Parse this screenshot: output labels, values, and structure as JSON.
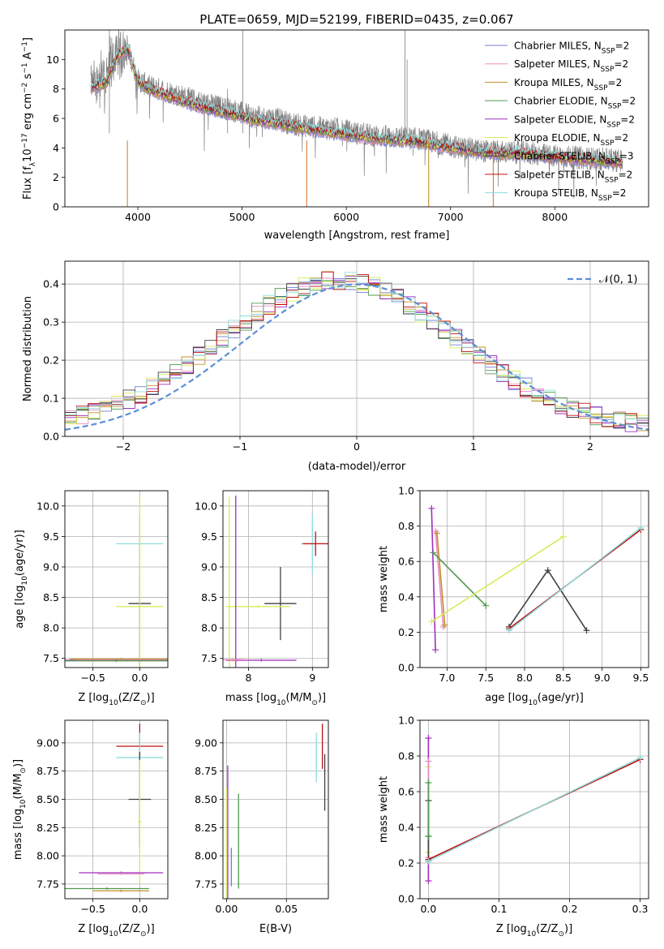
{
  "figure": {
    "title": "PLATE=0659, MJD=52199, FIBERID=0435, z=0.067"
  },
  "models": [
    {
      "name": "Chabrier MILES, N",
      "sub": "SSP",
      "suffix": "=2",
      "color": "#6f7fd0"
    },
    {
      "name": "Salpeter MILES, N",
      "sub": "SSP",
      "suffix": "=2",
      "color": "#e98fc4"
    },
    {
      "name": "Kroupa MILES, N",
      "sub": "SSP",
      "suffix": "=2",
      "color": "#c0902a"
    },
    {
      "name": "Chabrier ELODIE, N",
      "sub": "SSP",
      "suffix": "=2",
      "color": "#4f9a4f"
    },
    {
      "name": "Salpeter ELODIE, N",
      "sub": "SSP",
      "suffix": "=2",
      "color": "#a02ec0"
    },
    {
      "name": "Kroupa ELODIE, N",
      "sub": "SSP",
      "suffix": "=2",
      "color": "#d6ec5a"
    },
    {
      "name": "Chabrier STELIB, N",
      "sub": "SSP",
      "suffix": "=3",
      "color": "#404040"
    },
    {
      "name": "Salpeter STELIB, N",
      "sub": "SSP",
      "suffix": "=2",
      "color": "#c01010"
    },
    {
      "name": "Kroupa STELIB, N",
      "sub": "SSP",
      "suffix": "=2",
      "color": "#8fdcdc"
    }
  ],
  "chart_data": [
    {
      "id": "spectrum",
      "type": "line",
      "xlabel": "wavelength [Angstrom, rest frame]",
      "ylabel": "Flux [f",
      "ylabel_rich": [
        "Flux [f",
        "λ",
        "10",
        "−17",
        " erg cm",
        "−2",
        " s",
        "−1",
        " A",
        "−1",
        "]"
      ],
      "xlim": [
        3300,
        8900
      ],
      "ylim": [
        0,
        12
      ],
      "xticks": [
        4000,
        5000,
        6000,
        7000,
        8000
      ],
      "yticks": [
        0,
        2,
        4,
        6,
        8,
        10
      ],
      "data_color": "#808080",
      "data_points": [
        [
          3550,
          8.3
        ],
        [
          3700,
          8.8
        ],
        [
          3800,
          10.4
        ],
        [
          3900,
          10.8
        ],
        [
          4000,
          8.6
        ],
        [
          4100,
          8.2
        ],
        [
          4300,
          7.8
        ],
        [
          4500,
          7.3
        ],
        [
          4700,
          6.9
        ],
        [
          4900,
          6.6
        ],
        [
          5100,
          6.1
        ],
        [
          5300,
          6.0
        ],
        [
          5500,
          5.6
        ],
        [
          5700,
          5.4
        ],
        [
          5900,
          5.3
        ],
        [
          6100,
          5.0
        ],
        [
          6300,
          4.8
        ],
        [
          6500,
          4.7
        ],
        [
          6700,
          4.6
        ],
        [
          6900,
          4.3
        ],
        [
          7100,
          4.0
        ],
        [
          7300,
          3.8
        ],
        [
          7500,
          3.7
        ],
        [
          7700,
          3.7
        ],
        [
          7900,
          3.5
        ],
        [
          8100,
          3.4
        ],
        [
          8300,
          3.3
        ],
        [
          8500,
          3.2
        ],
        [
          8650,
          3.1
        ]
      ],
      "model_points": [
        [
          3550,
          8.1
        ],
        [
          3700,
          8.4
        ],
        [
          3800,
          10.2
        ],
        [
          3900,
          10.7
        ],
        [
          4000,
          8.5
        ],
        [
          4100,
          8.0
        ],
        [
          4300,
          7.5
        ],
        [
          4500,
          7.0
        ],
        [
          4700,
          6.6
        ],
        [
          4900,
          6.3
        ],
        [
          5100,
          5.9
        ],
        [
          5300,
          5.7
        ],
        [
          5500,
          5.4
        ],
        [
          5700,
          5.2
        ],
        [
          5900,
          5.0
        ],
        [
          6100,
          4.8
        ],
        [
          6300,
          4.6
        ],
        [
          6500,
          4.5
        ],
        [
          6700,
          4.4
        ],
        [
          6900,
          4.1
        ],
        [
          7100,
          3.9
        ],
        [
          7300,
          3.7
        ],
        [
          7500,
          3.6
        ],
        [
          7700,
          3.6
        ],
        [
          7900,
          3.4
        ],
        [
          8100,
          3.3
        ],
        [
          8300,
          3.2
        ],
        [
          8500,
          3.1
        ],
        [
          8650,
          3.0
        ]
      ]
    },
    {
      "id": "residuals",
      "type": "area",
      "xlabel": "(data-model)/error",
      "ylabel": "Normed distribution",
      "xlim": [
        -2.5,
        2.5
      ],
      "ylim": [
        0,
        0.46
      ],
      "xticks": [
        -2,
        -1,
        0,
        1,
        2
      ],
      "yticks": [
        0.0,
        0.1,
        0.2,
        0.3,
        0.4
      ],
      "legend": "𝒩(0, 1)",
      "normal_color": "#5b8fd6"
    },
    {
      "id": "age_vs_Z",
      "type": "scatter",
      "xlabel": "Z [log",
      "xlabel_tail": "(Z/Z",
      "ylabel": "age  [log",
      "ylabel_tail": "(age/yr)]",
      "xlim": [
        -0.8,
        0.3
      ],
      "ylim": [
        7.35,
        10.25
      ],
      "xticks": [
        -0.5,
        0.0
      ],
      "yticks": [
        7.5,
        8.0,
        8.5,
        9.0,
        9.5,
        10.0
      ],
      "points": [
        {
          "model": 6,
          "x": 0.0,
          "y": 8.4,
          "xerr": 0.12,
          "yerr": 1.4
        },
        {
          "model": 8,
          "x": 0.0,
          "y": 9.38,
          "xerr": 0.25,
          "yerr": 0.5
        },
        {
          "model": 5,
          "x": 0.0,
          "y": 8.35,
          "xerr": 0.25,
          "yerr": 1.8
        },
        {
          "model": 4,
          "x": -0.2,
          "y": 7.47,
          "xerr": 0.6,
          "yerr": 0.02
        },
        {
          "model": 1,
          "x": -0.2,
          "y": 7.48,
          "xerr": 0.5,
          "yerr": 0.02
        },
        {
          "model": 2,
          "x": -0.2,
          "y": 7.49,
          "xerr": 0.55,
          "yerr": 0.02
        },
        {
          "model": 3,
          "x": -0.25,
          "y": 7.46,
          "xerr": 0.55,
          "yerr": 0.02
        }
      ]
    },
    {
      "id": "age_vs_mass",
      "type": "scatter",
      "xlabel": "mass [log",
      "xlabel_tail": "(M/M",
      "xlim": [
        7.6,
        9.25
      ],
      "ylim": [
        7.35,
        10.25
      ],
      "xticks": [
        8,
        9
      ],
      "yticks": [
        7.5,
        8.0,
        8.5,
        9.0,
        9.5,
        10.0
      ],
      "points": [
        {
          "model": 6,
          "x": 8.5,
          "y": 8.4,
          "xerr": 0.25,
          "yerr": 0.6
        },
        {
          "model": 8,
          "x": 9.0,
          "y": 9.38,
          "xerr": 0.18,
          "yerr": 0.5
        },
        {
          "model": 7,
          "x": 9.05,
          "y": 9.38,
          "xerr": 0.2,
          "yerr": 0.2
        },
        {
          "model": 5,
          "x": 7.7,
          "y": 8.35,
          "xerr": 0.0,
          "yerr": 1.8
        },
        {
          "model": 5,
          "x": 8.15,
          "y": 8.35,
          "xerr": 0.5,
          "yerr": 0.02
        },
        {
          "model": 4,
          "x": 7.8,
          "y": 7.47,
          "xerr": 0.05,
          "yerr": 2.7
        },
        {
          "model": 4,
          "x": 8.2,
          "y": 7.47,
          "xerr": 0.55,
          "yerr": 0.02
        },
        {
          "model": 2,
          "x": 7.75,
          "y": 7.47,
          "xerr": 0.05,
          "yerr": 0.02
        },
        {
          "model": 1,
          "x": 7.75,
          "y": 7.48,
          "xerr": 0.2,
          "yerr": 0.02
        }
      ]
    },
    {
      "id": "mass_weight_vs_age",
      "type": "line",
      "xlabel": "age  [log",
      "xlabel_tail": "(age/yr)]",
      "ylabel": "mass weight",
      "xlim": [
        6.65,
        9.6
      ],
      "ylim": [
        0.0,
        1.0
      ],
      "xticks": [
        7.0,
        7.5,
        8.0,
        8.5,
        9.0,
        9.5
      ],
      "yticks": [
        0.0,
        0.2,
        0.4,
        0.6,
        0.8,
        1.0
      ],
      "series": [
        {
          "model": 4,
          "x": [
            6.8,
            6.85
          ],
          "y": [
            0.9,
            0.1
          ]
        },
        {
          "model": 1,
          "x": [
            6.85,
            6.95
          ],
          "y": [
            0.77,
            0.23
          ]
        },
        {
          "model": 2,
          "x": [
            6.87,
            6.97
          ],
          "y": [
            0.76,
            0.24
          ]
        },
        {
          "model": 3,
          "x": [
            6.82,
            7.5
          ],
          "y": [
            0.65,
            0.35
          ]
        },
        {
          "model": 5,
          "x": [
            6.8,
            8.5
          ],
          "y": [
            0.26,
            0.74
          ]
        },
        {
          "model": 6,
          "x": [
            7.8,
            8.3,
            8.8
          ],
          "y": [
            0.23,
            0.55,
            0.21
          ]
        },
        {
          "model": 7,
          "x": [
            7.8,
            9.5
          ],
          "y": [
            0.22,
            0.78
          ]
        },
        {
          "model": 8,
          "x": [
            7.8,
            9.5
          ],
          "y": [
            0.21,
            0.79
          ]
        }
      ]
    },
    {
      "id": "mass_vs_Z",
      "type": "scatter",
      "xlabel": "Z [log",
      "xlabel_tail": "(Z/Z",
      "ylabel": "mass [log",
      "ylabel_tail": "(M/M",
      "xlim": [
        -0.8,
        0.3
      ],
      "ylim": [
        7.62,
        9.2
      ],
      "xticks": [
        -0.5,
        0.0
      ],
      "yticks": [
        7.75,
        8.0,
        8.25,
        8.5,
        8.75,
        9.0
      ],
      "points": [
        {
          "model": 7,
          "x": 0.0,
          "y": 8.97,
          "xerr": 0.25,
          "yerr": 0.2
        },
        {
          "model": 8,
          "x": 0.0,
          "y": 8.87,
          "xerr": 0.25,
          "yerr": 0.22
        },
        {
          "model": 6,
          "x": 0.0,
          "y": 8.5,
          "xerr": 0.12,
          "yerr": 0.42
        },
        {
          "model": 5,
          "x": 0.0,
          "y": 8.3,
          "xerr": 0.02,
          "yerr": 0.55
        },
        {
          "model": 4,
          "x": -0.2,
          "y": 7.85,
          "xerr": 0.45,
          "yerr": 0.01
        },
        {
          "model": 1,
          "x": -0.2,
          "y": 7.84,
          "xerr": 0.25,
          "yerr": 0.01
        },
        {
          "model": 3,
          "x": -0.35,
          "y": 7.71,
          "xerr": 0.45,
          "yerr": 0.01
        },
        {
          "model": 2,
          "x": -0.2,
          "y": 7.69,
          "xerr": 0.3,
          "yerr": 0.01
        }
      ]
    },
    {
      "id": "mass_vs_ebv",
      "type": "scatter",
      "xlabel": "E(B-V)",
      "xlim": [
        -0.003,
        0.085
      ],
      "ylim": [
        7.62,
        9.2
      ],
      "xticks": [
        0.0,
        0.05
      ],
      "yticks": [
        7.75,
        8.0,
        8.25,
        8.5,
        8.75,
        9.0
      ],
      "points": [
        {
          "model": 7,
          "x": 0.08,
          "y": 8.97,
          "xerr": 0.0,
          "yerr": 0.2
        },
        {
          "model": 8,
          "x": 0.075,
          "y": 8.87,
          "xerr": 0.0,
          "yerr": 0.22
        },
        {
          "model": 6,
          "x": 0.082,
          "y": 8.65,
          "xerr": 0.0,
          "yerr": 0.25
        },
        {
          "model": 4,
          "x": 0.001,
          "y": 8.1,
          "xerr": 0.0,
          "yerr": 0.7
        },
        {
          "model": 5,
          "x": 0.0,
          "y": 8.1,
          "xerr": 0.0,
          "yerr": 0.5
        },
        {
          "model": 3,
          "x": 0.01,
          "y": 8.13,
          "xerr": 0.0,
          "yerr": 0.42
        },
        {
          "model": 0,
          "x": 0.004,
          "y": 7.9,
          "xerr": 0.0,
          "yerr": 0.17
        }
      ]
    },
    {
      "id": "mass_weight_vs_Z",
      "type": "line",
      "xlabel": "Z [log",
      "xlabel_tail": "(Z/Z",
      "ylabel": "mass weight",
      "xlim": [
        -0.012,
        0.312
      ],
      "ylim": [
        0.0,
        1.0
      ],
      "xticks": [
        0.0,
        0.1,
        0.2,
        0.3
      ],
      "yticks": [
        0.0,
        0.2,
        0.4,
        0.6,
        0.8,
        1.0
      ],
      "series": [
        {
          "model": 4,
          "x": [
            0.0,
            0.0
          ],
          "y": [
            0.9,
            0.1
          ]
        },
        {
          "model": 5,
          "x": [
            0.0,
            0.0
          ],
          "y": [
            0.74,
            0.26
          ]
        },
        {
          "model": 1,
          "x": [
            0.0,
            0.0
          ],
          "y": [
            0.77,
            0.23
          ]
        },
        {
          "model": 6,
          "x": [
            0.0,
            0.0,
            0.0
          ],
          "y": [
            0.55,
            0.35,
            0.21
          ]
        },
        {
          "model": 3,
          "x": [
            0.0,
            0.0
          ],
          "y": [
            0.65,
            0.35
          ]
        },
        {
          "model": 7,
          "x": [
            0.0,
            0.3
          ],
          "y": [
            0.22,
            0.78
          ]
        },
        {
          "model": 8,
          "x": [
            0.0,
            0.3
          ],
          "y": [
            0.21,
            0.79
          ]
        }
      ]
    }
  ]
}
